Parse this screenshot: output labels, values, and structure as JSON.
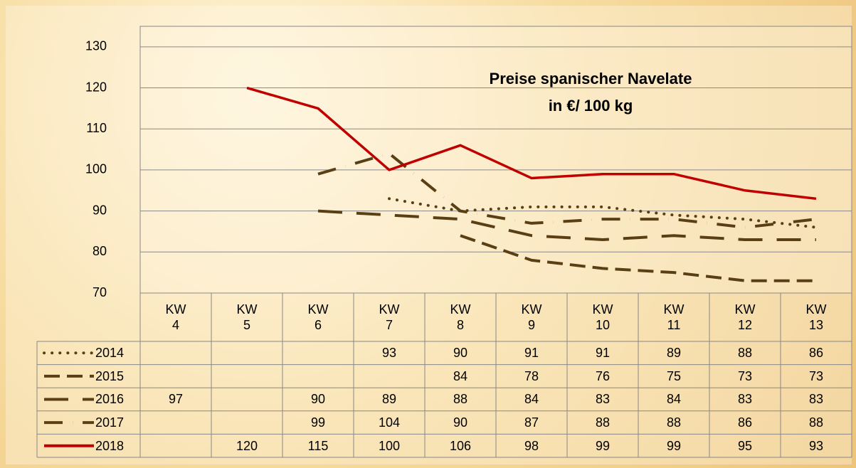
{
  "chart_data": {
    "type": "line",
    "title": "Preise spanischer Navelate",
    "subtitle": "in €/ 100 kg",
    "categories": [
      "KW\n4",
      "KW\n5",
      "KW\n6",
      "KW\n7",
      "KW\n8",
      "KW\n9",
      "KW\n10",
      "KW\n11",
      "KW\n12",
      "KW\n13"
    ],
    "ylim": [
      70,
      135
    ],
    "yticks": [
      70,
      80,
      90,
      100,
      110,
      120,
      130
    ],
    "grid": true,
    "series": [
      {
        "name": "2014",
        "color": "#5a3f14",
        "dash": "dot",
        "values": [
          null,
          null,
          null,
          93,
          90,
          91,
          91,
          89,
          88,
          86
        ]
      },
      {
        "name": "2015",
        "color": "#5a3f14",
        "dash": "dash",
        "values": [
          null,
          null,
          null,
          null,
          84,
          78,
          76,
          75,
          73,
          73
        ]
      },
      {
        "name": "2016",
        "color": "#5a3f14",
        "dash": "longdash",
        "values": [
          97,
          null,
          90,
          89,
          88,
          84,
          83,
          84,
          83,
          83
        ]
      },
      {
        "name": "2017",
        "color": "#5a3f14",
        "dash": "dashdot",
        "values": [
          null,
          null,
          99,
          104,
          90,
          87,
          88,
          88,
          86,
          88
        ]
      },
      {
        "name": "2018",
        "color": "#c00000",
        "dash": "solid",
        "values": [
          null,
          120,
          115,
          100,
          106,
          98,
          99,
          99,
          95,
          93
        ]
      }
    ]
  }
}
